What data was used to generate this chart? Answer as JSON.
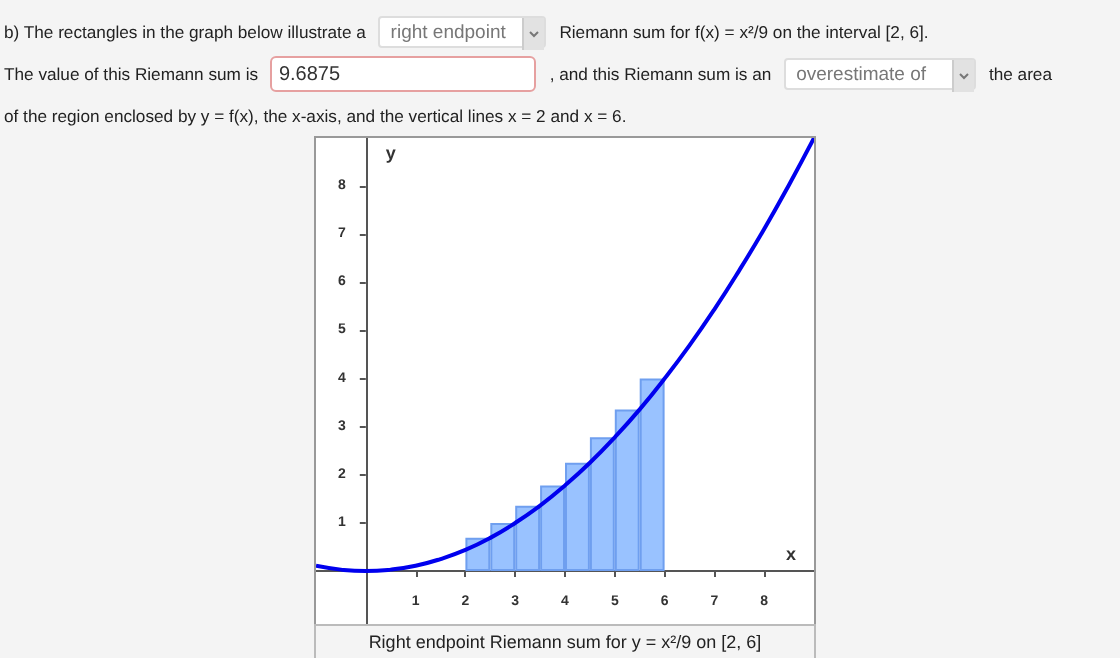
{
  "chart_data": {
    "type": "bar",
    "annotations": [
      "b) The rectangles in the graph below illustrate a",
      "right endpoint",
      "Riemann sum for f(x) = x²/9 on the interval [2, 6].",
      "The value of this Riemann sum is",
      "9.6875",
      ", and this Riemann sum is an",
      "overestimate of",
      "the area of the region enclosed by y = f(x), the x-axis, and the vertical lines x = 2 and x = 6.",
      "Right endpoint Riemann sum for y = x²/9 on [2, 6]"
    ],
    "xlabel": "x",
    "ylabel": "y",
    "series": [
      {
        "color": "#99c2ff",
        "x": [
          2.25,
          2.75,
          3.25,
          3.75,
          4.25,
          4.75,
          5.25,
          5.75
        ],
        "values": [
          0.69,
          1,
          1.36,
          1.78,
          2.25,
          2.78,
          3.36,
          4
        ]
      },
      {
        "type": "line",
        "color": "#0000ee",
        "x": [
          -1,
          -0.5,
          0,
          0.5,
          1,
          1.5,
          2,
          2.5,
          3,
          3.5,
          4,
          4.5,
          5,
          5.5,
          6,
          6.5,
          7,
          7.5,
          8,
          8.5,
          9
        ],
        "values": [
          0.11,
          0.03,
          0,
          0.03,
          0.11,
          0.25,
          0.44,
          0.69,
          1,
          1.36,
          1.78,
          2.25,
          2.78,
          3.36,
          4,
          4.69,
          5.44,
          6.25,
          7.11,
          8.03,
          9
        ]
      }
    ],
    "xlim": [
      -1,
      9
    ],
    "ylim": [
      -1.1,
      9
    ],
    "xticks": [
      1,
      2,
      3,
      4,
      5,
      6,
      7,
      8
    ],
    "yticks": [
      1,
      2,
      3,
      4,
      5,
      6,
      7,
      8
    ],
    "grid": false,
    "marker": "none"
  }
}
